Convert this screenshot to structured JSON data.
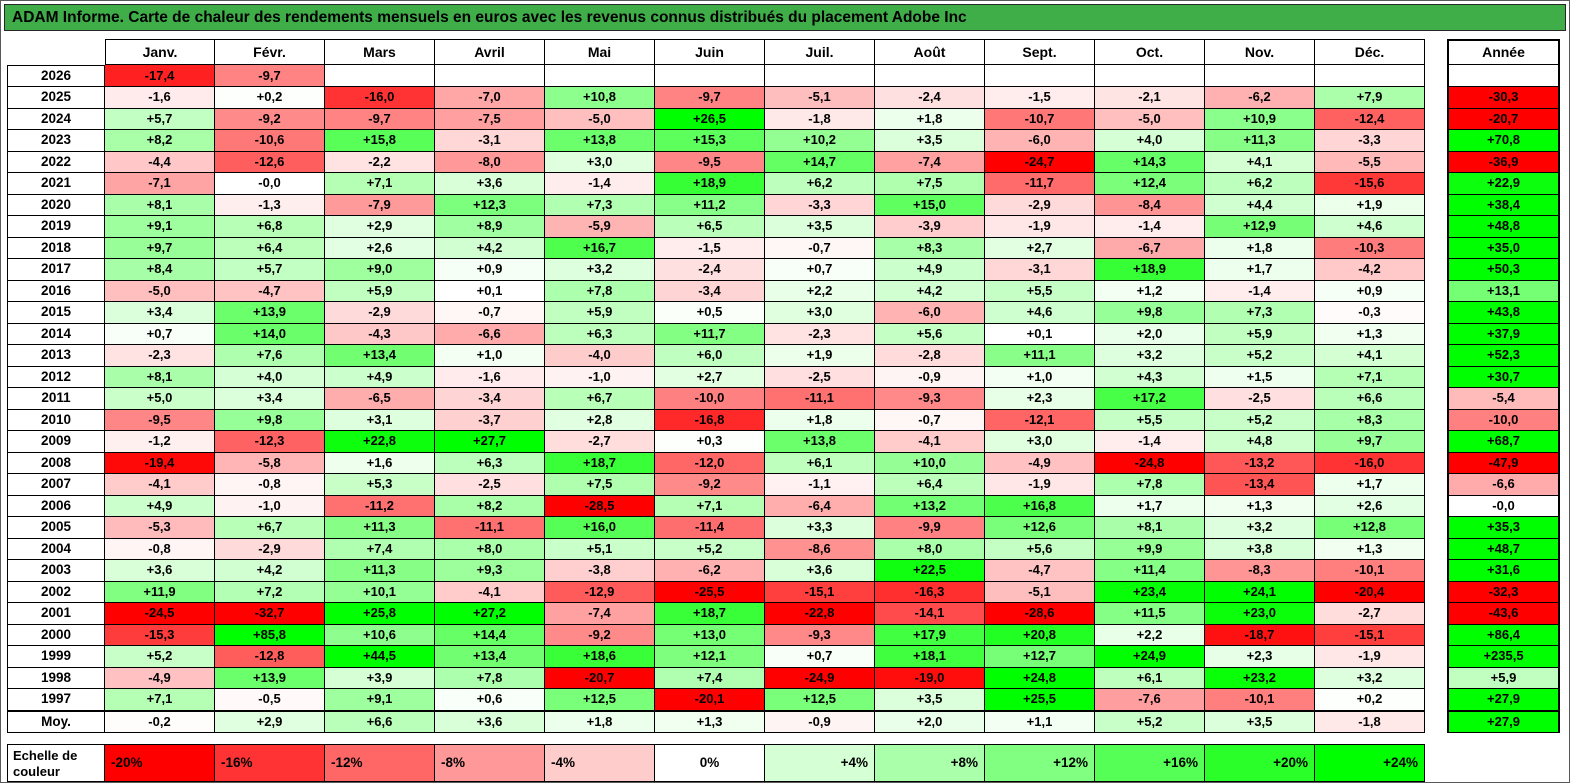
{
  "colors": {
    "title_bg": "#3fae49",
    "grid_line": "#000000"
  },
  "chart_data": {
    "type": "heatmap",
    "title": "ADAM Informe. Carte de chaleur des rendements mensuels en euros avec les revenus connus distribués du placement Adobe Inc",
    "columns": [
      "Janv.",
      "Févr.",
      "Mars",
      "Avril",
      "Mai",
      "Juin",
      "Juil.",
      "Août",
      "Sept.",
      "Oct.",
      "Nov.",
      "Déc."
    ],
    "total_column": "Année",
    "average_row_label": "Moy.",
    "color_scale": {
      "min": -20,
      "max": 24,
      "negative_color": "#ff0000",
      "neutral_color": "#ffffff",
      "positive_color": "#00ff00"
    },
    "legend": {
      "label": "Echelle de couleur",
      "stops": [
        {
          "label": "-20%",
          "value": -20
        },
        {
          "label": "-16%",
          "value": -16
        },
        {
          "label": "-12%",
          "value": -12
        },
        {
          "label": "-8%",
          "value": -8
        },
        {
          "label": "-4%",
          "value": -4
        },
        {
          "label": "0%",
          "value": 0
        },
        {
          "label": "+4%",
          "value": 4
        },
        {
          "label": "+8%",
          "value": 8
        },
        {
          "label": "+12%",
          "value": 12
        },
        {
          "label": "+16%",
          "value": 16
        },
        {
          "label": "+20%",
          "value": 20
        },
        {
          "label": "+24%",
          "value": 24
        }
      ]
    },
    "rows": [
      {
        "label": "2026",
        "values": [
          "-17,4",
          "-9,7",
          "",
          "",
          "",
          "",
          "",
          "",
          "",
          "",
          "",
          ""
        ],
        "total": ""
      },
      {
        "label": "2025",
        "values": [
          "-1,6",
          "+0,2",
          "-16,0",
          "-7,0",
          "+10,8",
          "-9,7",
          "-5,1",
          "-2,4",
          "-1,5",
          "-2,1",
          "-6,2",
          "+7,9"
        ],
        "total": "-30,3"
      },
      {
        "label": "2024",
        "values": [
          "+5,7",
          "-9,2",
          "-9,7",
          "-7,5",
          "-5,0",
          "+26,5",
          "-1,8",
          "+1,8",
          "-10,7",
          "-5,0",
          "+10,9",
          "-12,4"
        ],
        "total": "-20,7"
      },
      {
        "label": "2023",
        "values": [
          "+8,2",
          "-10,6",
          "+15,8",
          "-3,1",
          "+13,8",
          "+15,3",
          "+10,2",
          "+3,5",
          "-6,0",
          "+4,0",
          "+11,3",
          "-3,3"
        ],
        "total": "+70,8"
      },
      {
        "label": "2022",
        "values": [
          "-4,4",
          "-12,6",
          "-2,2",
          "-8,0",
          "+3,0",
          "-9,5",
          "+14,7",
          "-7,4",
          "-24,7",
          "+14,3",
          "+4,1",
          "-5,5"
        ],
        "total": "-36,9"
      },
      {
        "label": "2021",
        "values": [
          "-7,1",
          "-0,0",
          "+7,1",
          "+3,6",
          "-1,4",
          "+18,9",
          "+6,2",
          "+7,5",
          "-11,7",
          "+12,4",
          "+6,2",
          "-15,6"
        ],
        "total": "+22,9"
      },
      {
        "label": "2020",
        "values": [
          "+8,1",
          "-1,3",
          "-7,9",
          "+12,3",
          "+7,3",
          "+11,2",
          "-3,3",
          "+15,0",
          "-2,9",
          "-8,4",
          "+4,4",
          "+1,9"
        ],
        "total": "+38,4"
      },
      {
        "label": "2019",
        "values": [
          "+9,1",
          "+6,8",
          "+2,9",
          "+8,9",
          "-5,9",
          "+6,5",
          "+3,5",
          "-3,9",
          "-1,9",
          "-1,4",
          "+12,9",
          "+4,6"
        ],
        "total": "+48,8"
      },
      {
        "label": "2018",
        "values": [
          "+9,7",
          "+6,4",
          "+2,6",
          "+4,2",
          "+16,7",
          "-1,5",
          "-0,7",
          "+8,3",
          "+2,7",
          "-6,7",
          "+1,8",
          "-10,3"
        ],
        "total": "+35,0"
      },
      {
        "label": "2017",
        "values": [
          "+8,4",
          "+5,7",
          "+9,0",
          "+0,9",
          "+3,2",
          "-2,4",
          "+0,7",
          "+4,9",
          "-3,1",
          "+18,9",
          "+1,7",
          "-4,2"
        ],
        "total": "+50,3"
      },
      {
        "label": "2016",
        "values": [
          "-5,0",
          "-4,7",
          "+5,9",
          "+0,1",
          "+7,8",
          "-3,4",
          "+2,2",
          "+4,2",
          "+5,5",
          "+1,2",
          "-1,4",
          "+0,9"
        ],
        "total": "+13,1"
      },
      {
        "label": "2015",
        "values": [
          "+3,4",
          "+13,9",
          "-2,9",
          "-0,7",
          "+5,9",
          "+0,5",
          "+3,0",
          "-6,0",
          "+4,6",
          "+9,8",
          "+7,3",
          "-0,3"
        ],
        "total": "+43,8"
      },
      {
        "label": "2014",
        "values": [
          "+0,7",
          "+14,0",
          "-4,3",
          "-6,6",
          "+6,3",
          "+11,7",
          "-2,3",
          "+5,6",
          "+0,1",
          "+2,0",
          "+5,9",
          "+1,3"
        ],
        "total": "+37,9"
      },
      {
        "label": "2013",
        "values": [
          "-2,3",
          "+7,6",
          "+13,4",
          "+1,0",
          "-4,0",
          "+6,0",
          "+1,9",
          "-2,8",
          "+11,1",
          "+3,2",
          "+5,2",
          "+4,1"
        ],
        "total": "+52,3"
      },
      {
        "label": "2012",
        "values": [
          "+8,1",
          "+4,0",
          "+4,9",
          "-1,6",
          "-1,0",
          "+2,7",
          "-2,5",
          "-0,9",
          "+1,0",
          "+4,3",
          "+1,5",
          "+7,1"
        ],
        "total": "+30,7"
      },
      {
        "label": "2011",
        "values": [
          "+5,0",
          "+3,4",
          "-6,5",
          "-3,4",
          "+6,7",
          "-10,0",
          "-11,1",
          "-9,3",
          "+2,3",
          "+17,2",
          "-2,5",
          "+6,6"
        ],
        "total": "-5,4"
      },
      {
        "label": "2010",
        "values": [
          "-9,5",
          "+9,8",
          "+3,1",
          "-3,7",
          "+2,8",
          "-16,8",
          "+1,8",
          "-0,7",
          "-12,1",
          "+5,5",
          "+5,2",
          "+8,3"
        ],
        "total": "-10,0"
      },
      {
        "label": "2009",
        "values": [
          "-1,2",
          "-12,3",
          "+22,8",
          "+27,7",
          "-2,7",
          "+0,3",
          "+13,8",
          "-4,1",
          "+3,0",
          "-1,4",
          "+4,8",
          "+9,7"
        ],
        "total": "+68,7"
      },
      {
        "label": "2008",
        "values": [
          "-19,4",
          "-5,8",
          "+1,6",
          "+6,3",
          "+18,7",
          "-12,0",
          "+6,1",
          "+10,0",
          "-4,9",
          "-24,8",
          "-13,2",
          "-16,0"
        ],
        "total": "-47,9"
      },
      {
        "label": "2007",
        "values": [
          "-4,1",
          "-0,8",
          "+5,3",
          "-2,5",
          "+7,5",
          "-9,2",
          "-1,1",
          "+6,4",
          "-1,9",
          "+7,8",
          "-13,4",
          "+1,7"
        ],
        "total": "-6,6"
      },
      {
        "label": "2006",
        "values": [
          "+4,9",
          "-1,0",
          "-11,2",
          "+8,2",
          "-28,5",
          "+7,1",
          "-6,4",
          "+13,2",
          "+16,8",
          "+1,7",
          "+1,3",
          "+2,6"
        ],
        "total": "-0,0"
      },
      {
        "label": "2005",
        "values": [
          "-5,3",
          "+6,7",
          "+11,3",
          "-11,1",
          "+16,0",
          "-11,4",
          "+3,3",
          "-9,9",
          "+12,6",
          "+8,1",
          "+3,2",
          "+12,8"
        ],
        "total": "+35,3"
      },
      {
        "label": "2004",
        "values": [
          "-0,8",
          "-2,9",
          "+7,4",
          "+8,0",
          "+5,1",
          "+5,2",
          "-8,6",
          "+8,0",
          "+5,6",
          "+9,9",
          "+3,8",
          "+1,3"
        ],
        "total": "+48,7"
      },
      {
        "label": "2003",
        "values": [
          "+3,6",
          "+4,2",
          "+11,3",
          "+9,3",
          "-3,8",
          "-6,2",
          "+3,6",
          "+22,5",
          "-4,7",
          "+11,4",
          "-8,3",
          "-10,1"
        ],
        "total": "+31,6"
      },
      {
        "label": "2002",
        "values": [
          "+11,9",
          "+7,2",
          "+10,1",
          "-4,1",
          "-12,9",
          "-25,5",
          "-15,1",
          "-16,3",
          "-5,1",
          "+23,4",
          "+24,1",
          "-20,4"
        ],
        "total": "-32,3"
      },
      {
        "label": "2001",
        "values": [
          "-24,5",
          "-32,7",
          "+25,8",
          "+27,2",
          "-7,4",
          "+18,7",
          "-22,8",
          "-14,1",
          "-28,6",
          "+11,5",
          "+23,0",
          "-2,7"
        ],
        "total": "-43,6"
      },
      {
        "label": "2000",
        "values": [
          "-15,3",
          "+85,8",
          "+10,6",
          "+14,4",
          "-9,2",
          "+13,0",
          "-9,3",
          "+17,9",
          "+20,8",
          "+2,2",
          "-18,7",
          "-15,1"
        ],
        "total": "+86,4"
      },
      {
        "label": "1999",
        "values": [
          "+5,2",
          "-12,8",
          "+44,5",
          "+13,4",
          "+18,6",
          "+12,1",
          "+0,7",
          "+18,1",
          "+12,7",
          "+24,9",
          "+2,3",
          "-1,9"
        ],
        "total": "+235,5"
      },
      {
        "label": "1998",
        "values": [
          "-4,9",
          "+13,9",
          "+3,9",
          "+7,8",
          "-20,7",
          "+7,4",
          "-24,9",
          "-19,0",
          "+24,8",
          "+6,1",
          "+23,2",
          "+3,2"
        ],
        "total": "+5,9"
      },
      {
        "label": "1997",
        "values": [
          "+7,1",
          "-0,5",
          "+9,1",
          "+0,6",
          "+12,5",
          "-20,1",
          "+12,5",
          "+3,5",
          "+25,5",
          "-7,6",
          "-10,1",
          "+0,2"
        ],
        "total": "+27,9"
      },
      {
        "label": "Moy.",
        "values": [
          "-0,2",
          "+2,9",
          "+6,6",
          "+3,6",
          "+1,8",
          "+1,3",
          "-0,9",
          "+2,0",
          "+1,1",
          "+5,2",
          "+3,5",
          "-1,8"
        ],
        "total": "+27,9"
      }
    ]
  }
}
